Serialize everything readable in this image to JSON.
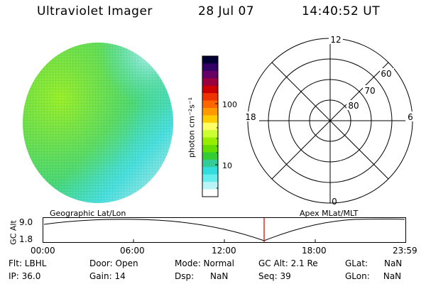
{
  "header": {
    "instrument": "Ultraviolet Imager",
    "date": "28 Jul 07",
    "time": "14:40:52 UT"
  },
  "colorbar": {
    "unit_label": "photon cm⁻²s⁻¹",
    "tick_labels": [
      "100",
      "10"
    ],
    "colors": [
      "#000033",
      "#330066",
      "#660066",
      "#99003d",
      "#cc0000",
      "#ee3300",
      "#ff6600",
      "#ff9900",
      "#ffcc00",
      "#ffff66",
      "#ccff33",
      "#99ee00",
      "#66dd00",
      "#33cc33",
      "#33cc99",
      "#33dddd",
      "#66eeee",
      "#bbf4f4",
      "#ffffff"
    ]
  },
  "polar_plot": {
    "mlt_labels": [
      "12",
      "18",
      "6",
      "0"
    ],
    "lat_labels": [
      "60",
      "70",
      "80"
    ]
  },
  "timeline": {
    "left_label": "Geographic Lat/Lon",
    "right_label": "Apex MLat/MLT",
    "y_axis_label": "GC Alt",
    "y_ticks": [
      "9.0",
      "1.8"
    ],
    "x_ticks": [
      "00:00",
      "06:00",
      "12:00",
      "18:00",
      "23:59"
    ],
    "marker_time": "14:40:52",
    "marker_color": "#cc0000"
  },
  "status": {
    "flt": "Flt: LBHL",
    "ip": "IP: 36.0",
    "door": "Door: Open",
    "gain": "Gain: 14",
    "mode": "Mode: Normal",
    "dsp": "Dsp:      NaN",
    "gc_alt": "GC Alt: 2.1 Re",
    "seq": "Seq: 39",
    "glat": "GLat:      NaN",
    "glon": "GLon:     NaN"
  }
}
